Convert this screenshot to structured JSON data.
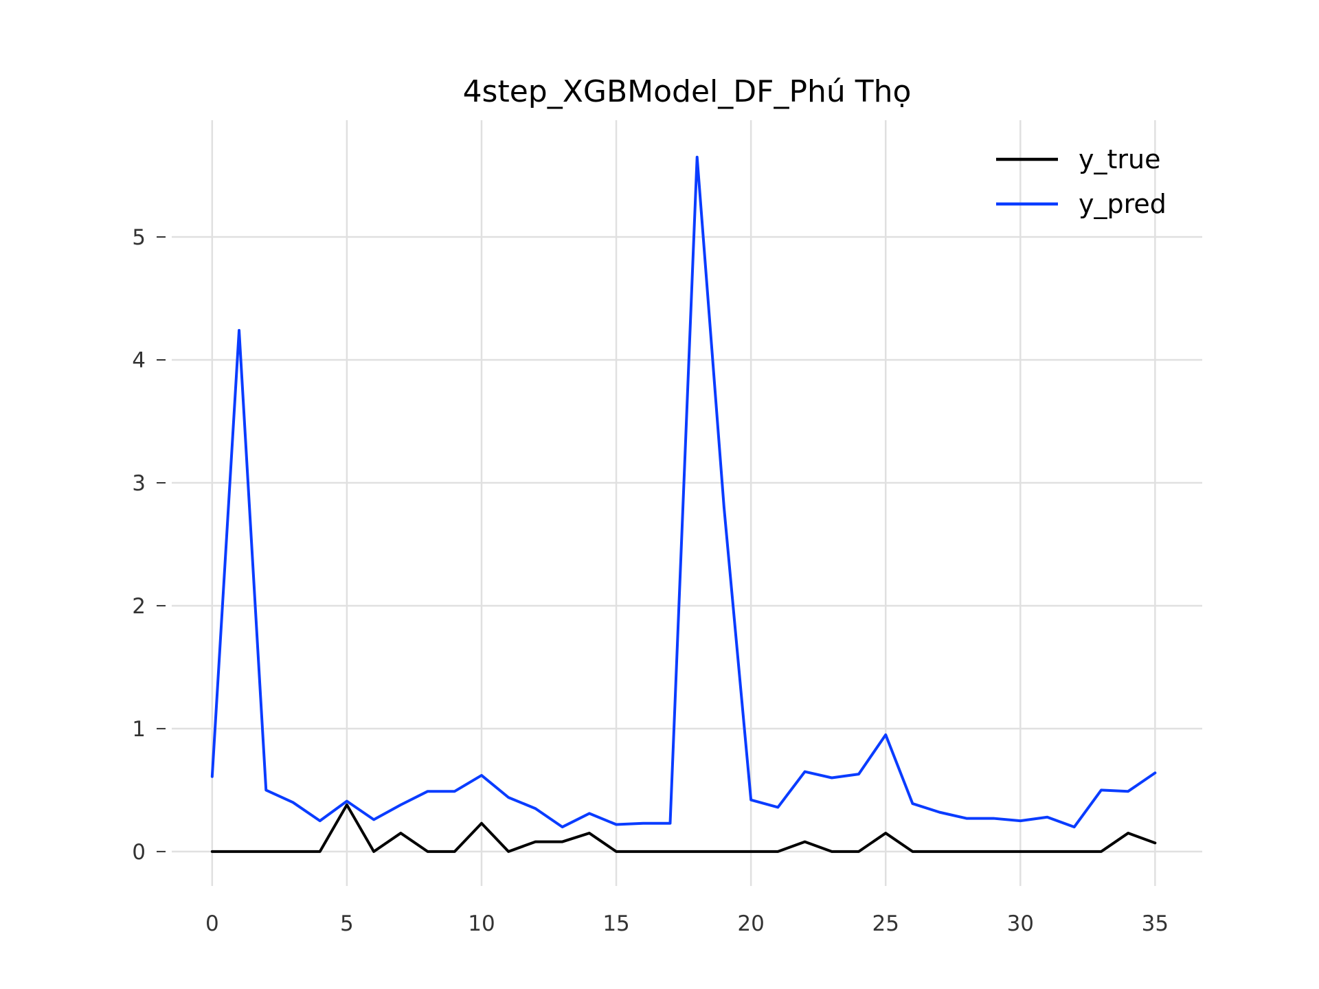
{
  "chart_data": {
    "type": "line",
    "title": "4step_XGBModel_DF_Phú Thọ",
    "xlabel": "",
    "ylabel": "",
    "xlim": [
      -1.5,
      36.75
    ],
    "ylim": [
      -0.28,
      5.95
    ],
    "grid": true,
    "legend_position": "top-right",
    "x_ticks": [
      0,
      5,
      10,
      15,
      20,
      25,
      30,
      35
    ],
    "y_ticks": [
      0,
      1,
      2,
      3,
      4,
      5
    ],
    "x": [
      0,
      1,
      2,
      3,
      4,
      5,
      6,
      7,
      8,
      9,
      10,
      11,
      12,
      13,
      14,
      15,
      16,
      17,
      18,
      19,
      20,
      21,
      22,
      23,
      24,
      25,
      26,
      27,
      28,
      29,
      30,
      31,
      32,
      33,
      34,
      35
    ],
    "series": [
      {
        "name": "y_true",
        "color": "#000000",
        "values": [
          0,
          0,
          0,
          0,
          0,
          0.38,
          0,
          0.15,
          0,
          0,
          0.23,
          0,
          0.08,
          0.08,
          0.15,
          0,
          0,
          0,
          0,
          0,
          0,
          0,
          0.08,
          0,
          0,
          0.15,
          0,
          0,
          0,
          0,
          0,
          0,
          0,
          0,
          0.15,
          0.07
        ]
      },
      {
        "name": "y_pred",
        "color": "#0a3cff",
        "values": [
          0.61,
          4.24,
          0.5,
          0.4,
          0.25,
          0.41,
          0.26,
          0.38,
          0.49,
          0.49,
          0.62,
          0.44,
          0.35,
          0.2,
          0.31,
          0.22,
          0.23,
          0.23,
          5.65,
          2.8,
          0.42,
          0.36,
          0.65,
          0.6,
          0.63,
          0.95,
          0.39,
          0.32,
          0.27,
          0.27,
          0.25,
          0.28,
          0.2,
          0.5,
          0.49,
          0.64
        ]
      }
    ]
  }
}
